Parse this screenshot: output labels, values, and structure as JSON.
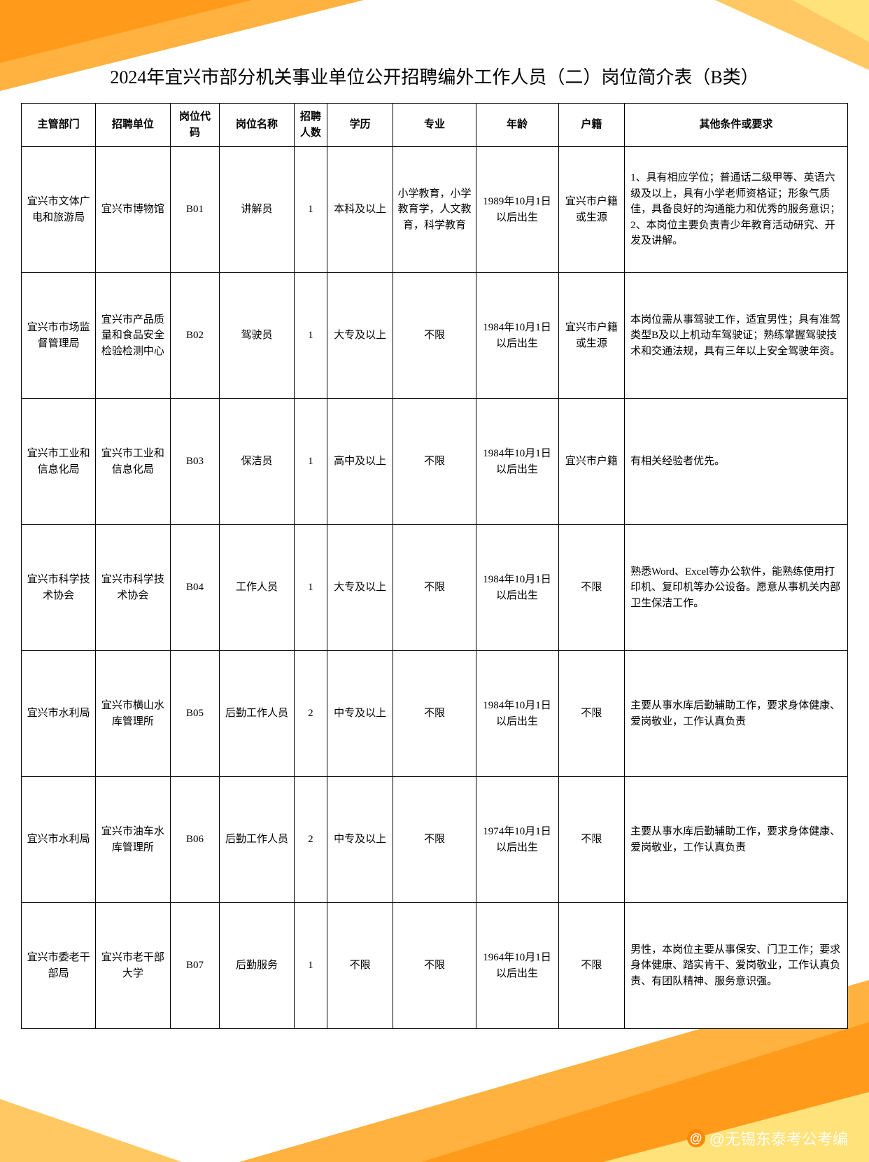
{
  "title": "2024年宜兴市部分机关事业单位公开招聘编外工作人员（二）岗位简介表（B类）",
  "columns": [
    "主管部门",
    "招聘单位",
    "岗位代码",
    "岗位名称",
    "招聘人数",
    "学历",
    "专业",
    "年龄",
    "户籍",
    "其他条件或要求"
  ],
  "rows": [
    {
      "dept": "宜兴市文体广电和旅游局",
      "unit": "宜兴市博物馆",
      "code": "B01",
      "name": "讲解员",
      "count": "1",
      "edu": "本科及以上",
      "major": "小学教育，小学教育学，人文教育，科学教育",
      "age": "1989年10月1日以后出生",
      "reg": "宜兴市户籍或生源",
      "req": "1、具有相应学位；普通话二级甲等、英语六级及以上，具有小学老师资格证；形象气质佳，具备良好的沟通能力和优秀的服务意识；\n2、本岗位主要负责青少年教育活动研究、开发及讲解。"
    },
    {
      "dept": "宜兴市市场监督管理局",
      "unit": "宜兴市产品质量和食品安全检验检测中心",
      "code": "B02",
      "name": "驾驶员",
      "count": "1",
      "edu": "大专及以上",
      "major": "不限",
      "age": "1984年10月1日以后出生",
      "reg": "宜兴市户籍或生源",
      "req": "本岗位需从事驾驶工作，适宜男性；具有准驾类型B及以上机动车驾驶证；熟练掌握驾驶技术和交通法规，具有三年以上安全驾驶年资。"
    },
    {
      "dept": "宜兴市工业和信息化局",
      "unit": "宜兴市工业和信息化局",
      "code": "B03",
      "name": "保洁员",
      "count": "1",
      "edu": "高中及以上",
      "major": "不限",
      "age": "1984年10月1日以后出生",
      "reg": "宜兴市户籍",
      "req": "有相关经验者优先。"
    },
    {
      "dept": "宜兴市科学技术协会",
      "unit": "宜兴市科学技术协会",
      "code": "B04",
      "name": "工作人员",
      "count": "1",
      "edu": "大专及以上",
      "major": "不限",
      "age": "1984年10月1日以后出生",
      "reg": "不限",
      "req": "熟悉Word、Excel等办公软件，能熟练使用打印机、复印机等办公设备。愿意从事机关内部卫生保洁工作。"
    },
    {
      "dept": "宜兴市水利局",
      "unit": "宜兴市横山水库管理所",
      "code": "B05",
      "name": "后勤工作人员",
      "count": "2",
      "edu": "中专及以上",
      "major": "不限",
      "age": "1984年10月1日以后出生",
      "reg": "不限",
      "req": "主要从事水库后勤辅助工作，要求身体健康、爱岗敬业，工作认真负责"
    },
    {
      "dept": "宜兴市水利局",
      "unit": "宜兴市油车水库管理所",
      "code": "B06",
      "name": "后勤工作人员",
      "count": "2",
      "edu": "中专及以上",
      "major": "不限",
      "age": "1974年10月1日以后出生",
      "reg": "不限",
      "req": "主要从事水库后勤辅助工作，要求身体健康、爱岗敬业，工作认真负责"
    },
    {
      "dept": "宜兴市委老干部局",
      "unit": "宜兴市老干部大学",
      "code": "B07",
      "name": "后勤服务",
      "count": "1",
      "edu": "不限",
      "major": "不限",
      "age": "1964年10月1日以后出生",
      "reg": "不限",
      "req": "男性，本岗位主要从事保安、门卫工作；要求身体健康、踏实肯干、爱岗敬业，工作认真负责、有团队精神、服务意识强。"
    }
  ],
  "watermark": "@无锡东泰考公考编",
  "colors": {
    "orange1": "#ffb23f",
    "orange2": "#ffc862",
    "orange3": "#ff9a1a",
    "yellow": "#ffe27a"
  }
}
